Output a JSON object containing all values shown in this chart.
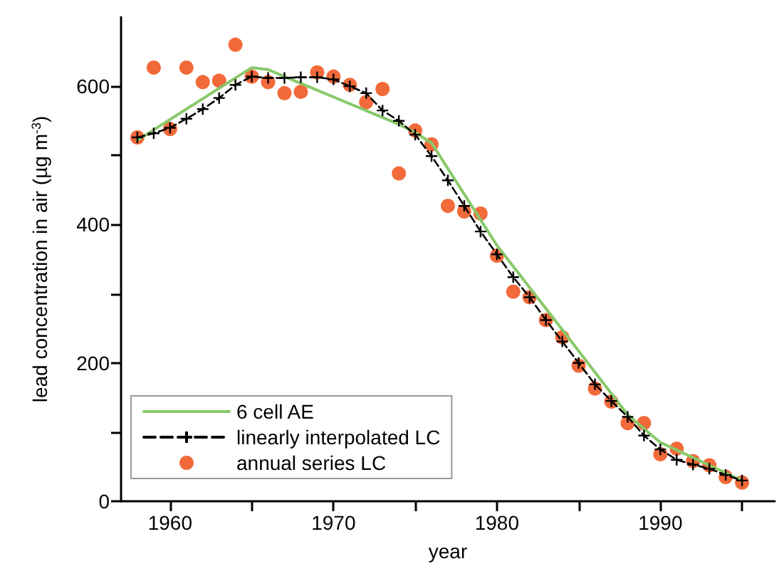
{
  "chart_data": {
    "type": "line",
    "xlabel": "year",
    "ylabel": "lead concentration in air (µg m$^{-3}$)",
    "xlim": [
      1957,
      1997
    ],
    "xticks": [
      1960,
      {
        "value": 1965,
        "label": null
      },
      1970,
      {
        "value": 1975,
        "label": null
      },
      1980,
      {
        "value": 1985,
        "label": null
      },
      1990,
      {
        "value": 1995,
        "label": null
      }
    ],
    "ylim": [
      0,
      700
    ],
    "yticks": [
      0,
      {
        "value": 100,
        "label": null
      },
      200,
      {
        "value": 300,
        "label": null
      },
      400,
      {
        "value": 500,
        "label": null
      },
      600
    ],
    "grid": false,
    "legend": "bottom left",
    "series": [
      {
        "name": "6 cell AE",
        "color": "#88c96a",
        "marker": "none",
        "line_style": "solid",
        "x": [
          1958,
          1965,
          1966,
          1974,
          1975,
          1976,
          1980,
          1984,
          1988,
          1990,
          1995
        ],
        "values": [
          522,
          627,
          624,
          545,
          533,
          518,
          370,
          248,
          125,
          85,
          30
        ]
      },
      {
        "name": "linearly interpolated LC",
        "color": "#000000",
        "marker": "cross",
        "line_style": "dashed",
        "x": [
          1958,
          1959,
          1960,
          1961,
          1962,
          1963,
          1964,
          1965,
          1966,
          1967,
          1968,
          1969,
          1970,
          1971,
          1972,
          1973,
          1974,
          1975,
          1976,
          1977,
          1978,
          1979,
          1980,
          1981,
          1982,
          1983,
          1984,
          1985,
          1986,
          1987,
          1988,
          1989,
          1990,
          1991,
          1992,
          1993,
          1994,
          1995
        ],
        "values": [
          526,
          532,
          540,
          553,
          567,
          583,
          602,
          614,
          612,
          612,
          613,
          613,
          610,
          600,
          590,
          565,
          550,
          530,
          499,
          464,
          427,
          390,
          357,
          324,
          295,
          262,
          231,
          200,
          169,
          145,
          122,
          95,
          75,
          60,
          53,
          47,
          38,
          30
        ]
      },
      {
        "name": "annual series LC",
        "type": "scatter",
        "color": "#f26a3a",
        "marker": "circle",
        "x": [
          1958,
          1959,
          1960,
          1961,
          1962,
          1963,
          1964,
          1965,
          1966,
          1967,
          1968,
          1969,
          1970,
          1971,
          1972,
          1973,
          1974,
          1975,
          1976,
          1977,
          1978,
          1979,
          1980,
          1981,
          1982,
          1983,
          1984,
          1985,
          1986,
          1987,
          1988,
          1989,
          1990,
          1991,
          1992,
          1993,
          1994,
          1995
        ],
        "values": [
          526,
          627,
          538,
          627,
          606,
          608,
          660,
          614,
          606,
          590,
          592,
          620,
          614,
          602,
          577,
          596,
          474,
          536,
          516,
          427,
          419,
          416,
          355,
          303,
          295,
          262,
          237,
          196,
          163,
          144,
          113,
          113,
          68,
          76,
          58,
          52,
          35,
          27
        ]
      }
    ]
  }
}
